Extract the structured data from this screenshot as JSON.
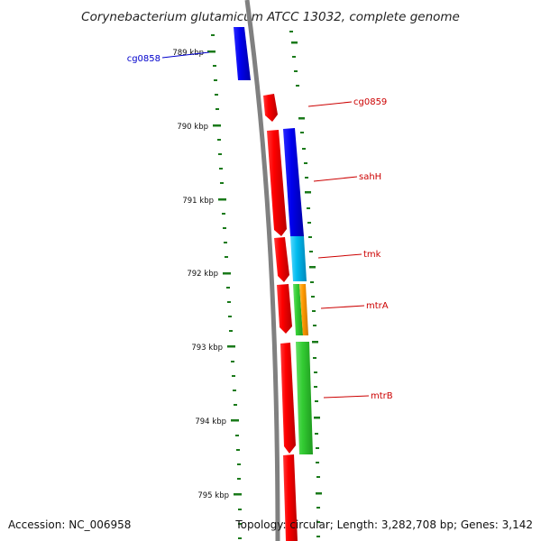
{
  "title": "Corynebacterium glutamicum ATCC 13032, complete genome",
  "footer": {
    "accession": "Accession: NC_006958",
    "topology": "Topology: circular; Length: 3,282,708 bp; Genes: 3,142"
  },
  "scale_labels": [
    "789 kbp",
    "790 kbp",
    "791 kbp",
    "792 kbp",
    "793 kbp",
    "794 kbp",
    "795 kbp"
  ],
  "genes": [
    {
      "name": "cg0858",
      "color": "#0000cc"
    },
    {
      "name": "cg0859",
      "color": "#cc0000"
    },
    {
      "name": "sahH",
      "color": "#cc0000"
    },
    {
      "name": "tmk",
      "color": "#cc0000"
    },
    {
      "name": "mtrA",
      "color": "#cc0000"
    },
    {
      "name": "mtrB",
      "color": "#cc0000"
    }
  ],
  "colors": {
    "backbone": "#808080",
    "ticks": "#1a7a1a",
    "cds_forward": "#ff0000",
    "cog_blue": "#0000ee",
    "cog_cyan": "#00bbee",
    "cog_green": "#33cc33",
    "cog_orange": "#ff9900"
  }
}
